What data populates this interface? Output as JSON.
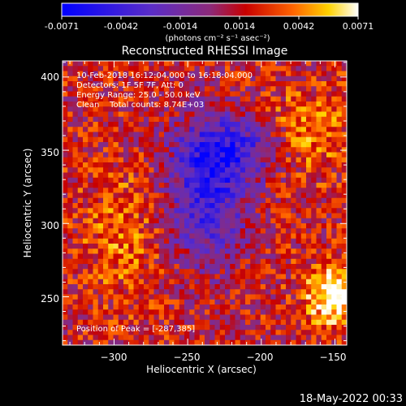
{
  "colorbar": {
    "tick_labels": [
      "-0.0071",
      "-0.0042",
      "-0.0014",
      "0.0014",
      "0.0042",
      "0.0071"
    ],
    "range": [
      -0.0071,
      0.0071
    ],
    "units_label": "(photons cm⁻² s⁻¹ asec⁻²)",
    "colors": [
      "#0000ff",
      "#5a2dc8",
      "#8c2a7a",
      "#c80000",
      "#ff6400",
      "#ffd200",
      "#ffffff"
    ]
  },
  "chart_data": {
    "type": "heatmap",
    "title": "Reconstructed RHESSI Image",
    "xlabel": "Heliocentric X (arcsec)",
    "ylabel": "Heliocentric Y (arcsec)",
    "xlim": [
      -335,
      -142
    ],
    "ylim": [
      217,
      411
    ],
    "x_ticks": [
      -300,
      -250,
      -200,
      -150
    ],
    "y_ticks": [
      250,
      300,
      350,
      400
    ],
    "x_tick_labels": [
      "−300",
      "−250",
      "−200",
      "−150"
    ],
    "y_tick_labels": [
      "250",
      "300",
      "350",
      "400"
    ],
    "grid": false,
    "annotations": [
      "10-Feb-2018 16:12:04.000 to 16:18:04.000",
      "Detectors: 1F 5F 7F, Att: 0",
      "Energy Range: 25.0 - 50.0 keV",
      "Clean    Total counts: 8.74E+03"
    ],
    "peak_label": "Position of Peak = [-287,385]",
    "peak_position": [
      -287,
      385
    ]
  },
  "footer_date": "18-May-2022 00:33"
}
